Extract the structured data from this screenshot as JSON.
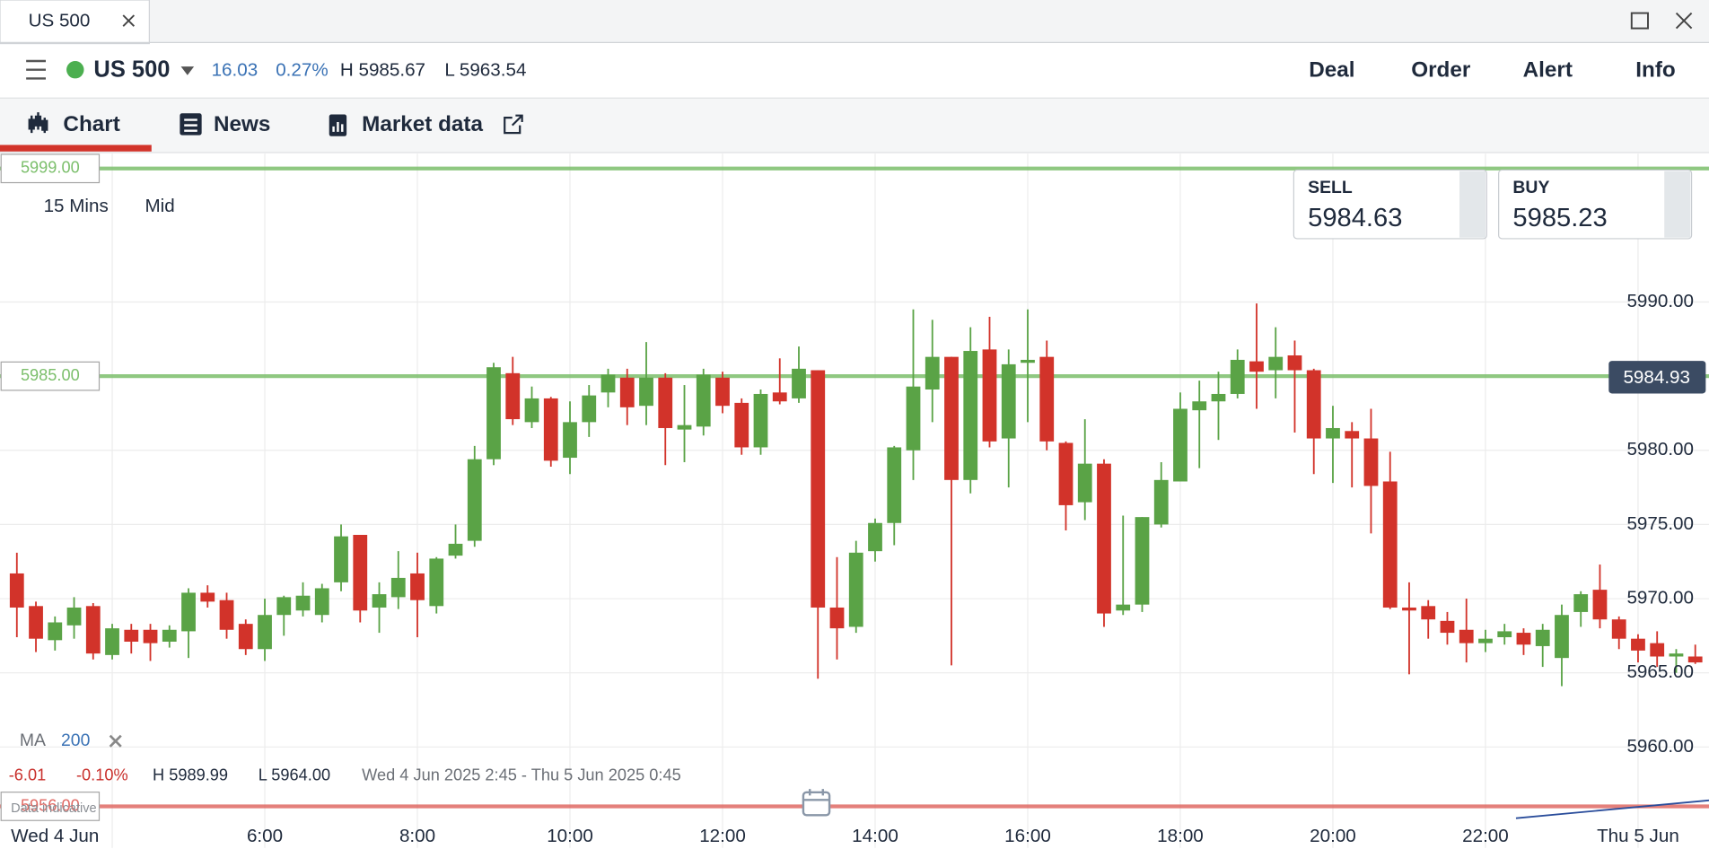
{
  "window_tab": "US 500",
  "header": {
    "instrument": "US 500",
    "change": "16.03",
    "change_pct": "0.27%",
    "high": "H 5985.67",
    "low": "L 5963.54",
    "actions": [
      "Deal",
      "Order",
      "Alert",
      "Info"
    ]
  },
  "tabs": [
    "Chart",
    "News",
    "Market data"
  ],
  "chart_settings": {
    "interval": "15 Mins",
    "price_type": "Mid"
  },
  "quote": {
    "sell_label": "SELL",
    "sell": "5984.63",
    "buy_label": "BUY",
    "buy": "5985.23"
  },
  "indicator": {
    "name": "MA",
    "period": "200"
  },
  "summary": {
    "change": "-6.01",
    "change_pct": "-0.10%",
    "high": "H 5989.99",
    "low": "L 5964.00",
    "range": "Wed 4 Jun 2025 2:45 - Thu 5 Jun 2025 0:45"
  },
  "watermark": "Data indicative",
  "chart_data": {
    "type": "candlestick",
    "up_color": "#5aa346",
    "down_color": "#d2332a",
    "grid": true,
    "xlim": [
      2.529,
      24.93
    ],
    "ylim": [
      5953.2,
      6000
    ],
    "xticks": [
      {
        "value": 4,
        "label": "Wed 4 Jun"
      },
      {
        "value": 6,
        "label": "6:00"
      },
      {
        "value": 8,
        "label": "8:00"
      },
      {
        "value": 10,
        "label": "10:00"
      },
      {
        "value": 12,
        "label": "12:00"
      },
      {
        "value": 14,
        "label": "14:00"
      },
      {
        "value": 16,
        "label": "16:00"
      },
      {
        "value": 18,
        "label": "18:00"
      },
      {
        "value": 20,
        "label": "20:00"
      },
      {
        "value": 22,
        "label": "22:00"
      },
      {
        "value": 24,
        "label": "Thu 5 Jun"
      }
    ],
    "yticks": [
      {
        "value": 5960,
        "label": "5960.00"
      },
      {
        "value": 5965,
        "label": "5965.00"
      },
      {
        "value": 5970,
        "label": "5970.00"
      },
      {
        "value": 5975,
        "label": "5975.00"
      },
      {
        "value": 5980,
        "label": "5980.00"
      },
      {
        "value": 5990,
        "label": "5990.00"
      }
    ],
    "levels": [
      {
        "value": 5999,
        "label": "5999.00",
        "color": "#7cbf6c"
      },
      {
        "value": 5985,
        "label": "5985.00",
        "color": "#7cbf6c"
      },
      {
        "value": 5956,
        "label": "5956.00",
        "color": "#e06a64"
      }
    ],
    "current_price": {
      "value": 5984.93,
      "label": "5984.93"
    },
    "ma": {
      "x": [
        22.4,
        24.93
      ],
      "values": [
        5955.2,
        5956.4
      ],
      "color": "#2a4d9b"
    },
    "x": [
      2.75,
      3,
      3.25,
      3.5,
      3.75,
      4,
      4.25,
      4.5,
      4.75,
      5,
      5.25,
      5.5,
      5.75,
      6,
      6.25,
      6.5,
      6.75,
      7,
      7.25,
      7.5,
      7.75,
      8,
      8.25,
      8.5,
      8.75,
      9,
      9.25,
      9.5,
      9.75,
      10,
      10.25,
      10.5,
      10.75,
      11,
      11.25,
      11.5,
      11.75,
      12,
      12.25,
      12.5,
      12.75,
      13,
      13.25,
      13.5,
      13.75,
      14,
      14.25,
      14.5,
      14.75,
      15,
      15.25,
      15.5,
      15.75,
      16,
      16.25,
      16.5,
      16.75,
      17,
      17.25,
      17.5,
      17.75,
      18,
      18.25,
      18.5,
      18.75,
      19,
      19.25,
      19.5,
      19.75,
      20,
      20.25,
      20.5,
      20.75,
      21,
      21.25,
      21.5,
      21.75,
      22,
      22.25,
      22.5,
      22.75,
      23,
      23.25,
      23.5,
      23.75,
      24,
      24.25,
      24.5,
      24.75
    ],
    "open": [
      5971.7,
      5969.5,
      5967.2,
      5968.2,
      5969.5,
      5966.2,
      5967.9,
      5967.9,
      5967.1,
      5967.8,
      5970.4,
      5969.9,
      5968.3,
      5966.6,
      5968.9,
      5969.2,
      5968.9,
      5971.1,
      5974.3,
      5969.4,
      5970.1,
      5971.7,
      5969.5,
      5972.9,
      5973.9,
      5979.4,
      5985.2,
      5981.9,
      5983.5,
      5979.5,
      5981.9,
      5983.9,
      5984.9,
      5983.0,
      5984.9,
      5981.4,
      5981.6,
      5984.9,
      5983.2,
      5980.2,
      5983.9,
      5983.5,
      5985.4,
      5969.4,
      5968.1,
      5973.2,
      5975.1,
      5980.0,
      5984.1,
      5986.3,
      5978.0,
      5986.8,
      5980.8,
      5985.9,
      5986.3,
      5980.5,
      5976.5,
      5979.1,
      5969.2,
      5969.6,
      5975.0,
      5977.9,
      5982.7,
      5983.3,
      5983.8,
      5986.0,
      5985.4,
      5986.4,
      5985.4,
      5980.8,
      5981.3,
      5980.8,
      5977.9,
      5969.4,
      5969.5,
      5968.5,
      5967.9,
      5967.0,
      5967.4,
      5967.7,
      5966.8,
      5966.0,
      5969.1,
      5970.6,
      5968.6,
      5967.3,
      5967.0,
      5966.1,
      5966.1
    ],
    "high": [
      5973.1,
      5969.8,
      5968.8,
      5970.1,
      5969.7,
      5968.3,
      5968.3,
      5968.3,
      5968.2,
      5970.7,
      5970.9,
      5970.4,
      5968.6,
      5970.0,
      5970.2,
      5971.1,
      5971.0,
      5975.0,
      5974.3,
      5971.1,
      5973.2,
      5973.1,
      5972.8,
      5975.0,
      5980.3,
      5985.9,
      5986.3,
      5984.3,
      5983.6,
      5983.3,
      5984.4,
      5985.5,
      5985.5,
      5987.3,
      5985.2,
      5984.4,
      5985.5,
      5985.3,
      5983.5,
      5984.1,
      5986.2,
      5987.0,
      5985.4,
      5972.8,
      5973.9,
      5975.4,
      5980.3,
      5989.5,
      5988.8,
      5986.3,
      5988.3,
      5989.0,
      5986.8,
      5989.5,
      5987.4,
      5980.6,
      5982.1,
      5979.4,
      5975.6,
      5975.5,
      5979.2,
      5983.9,
      5984.7,
      5985.3,
      5986.8,
      5989.9,
      5988.3,
      5987.4,
      5985.5,
      5983.0,
      5981.9,
      5982.8,
      5979.9,
      5971.1,
      5969.9,
      5969.1,
      5970.0,
      5967.9,
      5968.3,
      5968.0,
      5968.3,
      5969.6,
      5970.5,
      5972.3,
      5968.8,
      5967.6,
      5967.8,
      5966.6,
      5966.9
    ],
    "low": [
      5967.4,
      5966.4,
      5966.5,
      5967.3,
      5965.9,
      5965.9,
      5966.3,
      5965.8,
      5966.7,
      5966.0,
      5969.4,
      5967.3,
      5966.2,
      5965.8,
      5967.5,
      5968.8,
      5968.4,
      5970.5,
      5968.4,
      5967.7,
      5969.3,
      5967.4,
      5969.0,
      5972.7,
      5973.5,
      5979.0,
      5981.7,
      5981.5,
      5978.9,
      5978.4,
      5980.9,
      5982.9,
      5981.7,
      5981.7,
      5979.0,
      5979.2,
      5981.0,
      5982.5,
      5979.7,
      5979.7,
      5983.1,
      5983.2,
      5964.6,
      5965.9,
      5967.7,
      5972.5,
      5973.6,
      5978.0,
      5981.9,
      5965.5,
      5977.1,
      5980.2,
      5977.5,
      5981.9,
      5980.0,
      5974.6,
      5975.3,
      5968.1,
      5968.9,
      5969.1,
      5974.8,
      5977.9,
      5978.8,
      5980.7,
      5983.5,
      5982.8,
      5983.5,
      5981.2,
      5978.4,
      5977.8,
      5977.5,
      5974.4,
      5969.3,
      5964.9,
      5967.3,
      5966.9,
      5965.7,
      5966.4,
      5966.9,
      5966.2,
      5965.4,
      5964.1,
      5968.1,
      5968.0,
      5966.6,
      5965.7,
      5965.4,
      5965.0,
      5965.6
    ],
    "close": [
      5969.4,
      5967.3,
      5968.4,
      5969.4,
      5966.3,
      5968.0,
      5967.1,
      5967.0,
      5967.9,
      5970.4,
      5969.8,
      5967.9,
      5966.6,
      5968.9,
      5970.1,
      5970.2,
      5970.7,
      5974.2,
      5969.2,
      5970.3,
      5971.4,
      5969.9,
      5972.7,
      5973.7,
      5979.4,
      5985.6,
      5982.1,
      5983.5,
      5979.3,
      5981.9,
      5983.7,
      5985.1,
      5982.9,
      5984.9,
      5981.5,
      5981.7,
      5985.1,
      5983.0,
      5980.2,
      5983.8,
      5983.3,
      5985.5,
      5969.4,
      5968.0,
      5973.1,
      5975.1,
      5980.2,
      5984.3,
      5986.3,
      5978.0,
      5986.7,
      5980.6,
      5985.8,
      5986.1,
      5980.6,
      5976.3,
      5979.1,
      5969.0,
      5969.6,
      5975.5,
      5978.0,
      5982.8,
      5983.3,
      5983.8,
      5986.1,
      5985.3,
      5986.3,
      5985.4,
      5980.8,
      5981.5,
      5980.8,
      5977.6,
      5969.4,
      5969.2,
      5968.6,
      5967.7,
      5967.0,
      5967.3,
      5967.8,
      5966.9,
      5967.9,
      5968.9,
      5970.3,
      5968.6,
      5967.3,
      5966.5,
      5966.1,
      5966.3,
      5965.7
    ]
  }
}
